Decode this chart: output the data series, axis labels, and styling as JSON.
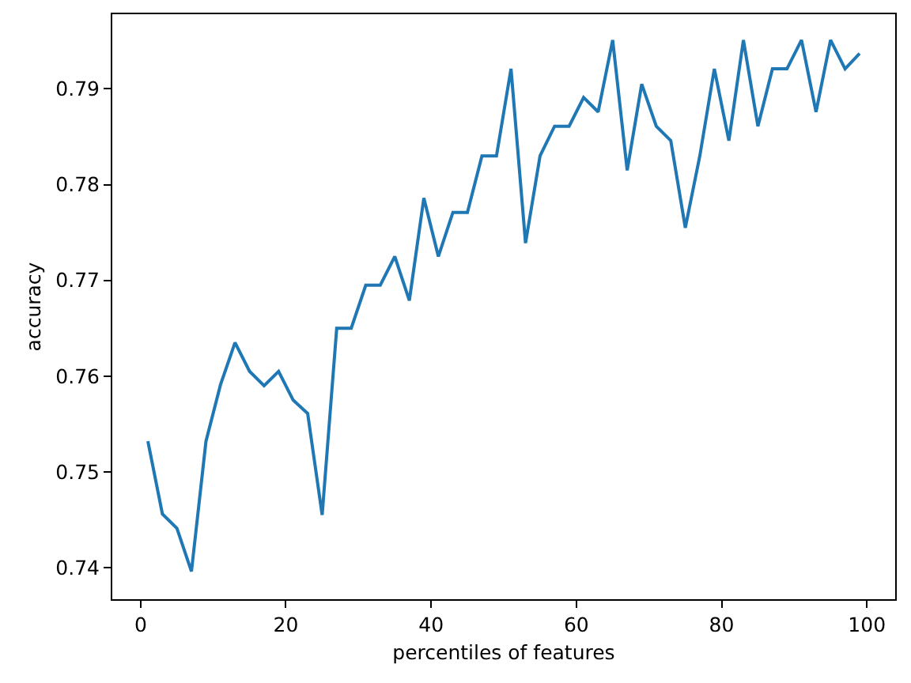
{
  "chart_data": {
    "type": "line",
    "xlabel": "percentiles of features",
    "ylabel": "accuracy",
    "x": [
      1,
      3,
      5,
      7,
      9,
      11,
      13,
      15,
      17,
      19,
      21,
      23,
      25,
      27,
      29,
      31,
      33,
      35,
      37,
      39,
      41,
      43,
      45,
      47,
      49,
      51,
      53,
      55,
      57,
      59,
      61,
      63,
      65,
      67,
      69,
      71,
      73,
      75,
      77,
      79,
      81,
      83,
      85,
      87,
      89,
      91,
      93,
      95,
      97,
      99
    ],
    "series": [
      {
        "color": "#1f77b4",
        "values": [
          0.7532,
          0.7456,
          0.7441,
          0.7396,
          0.7532,
          0.7591,
          0.7635,
          0.7605,
          0.759,
          0.7605,
          0.7575,
          0.7561,
          0.7455,
          0.765,
          0.765,
          0.7695,
          0.7695,
          0.7725,
          0.7679,
          0.7786,
          0.7725,
          0.7771,
          0.7771,
          0.783,
          0.783,
          0.7921,
          0.7739,
          0.783,
          0.7861,
          0.7861,
          0.7891,
          0.7876,
          0.7951,
          0.7815,
          0.7905,
          0.7861,
          0.7846,
          0.7755,
          0.783,
          0.7921,
          0.7846,
          0.7951,
          0.7861,
          0.7921,
          0.7921,
          0.7951,
          0.7876,
          0.7951,
          0.7921,
          0.7937
        ]
      }
    ],
    "xlim": [
      -3.9,
      103.9
    ],
    "xticks": [
      0,
      20,
      40,
      60,
      80,
      100
    ],
    "ylim": [
      0.7367,
      0.7978
    ],
    "yticks": [
      0.74,
      0.75,
      0.76,
      0.77,
      0.78,
      0.79
    ]
  }
}
